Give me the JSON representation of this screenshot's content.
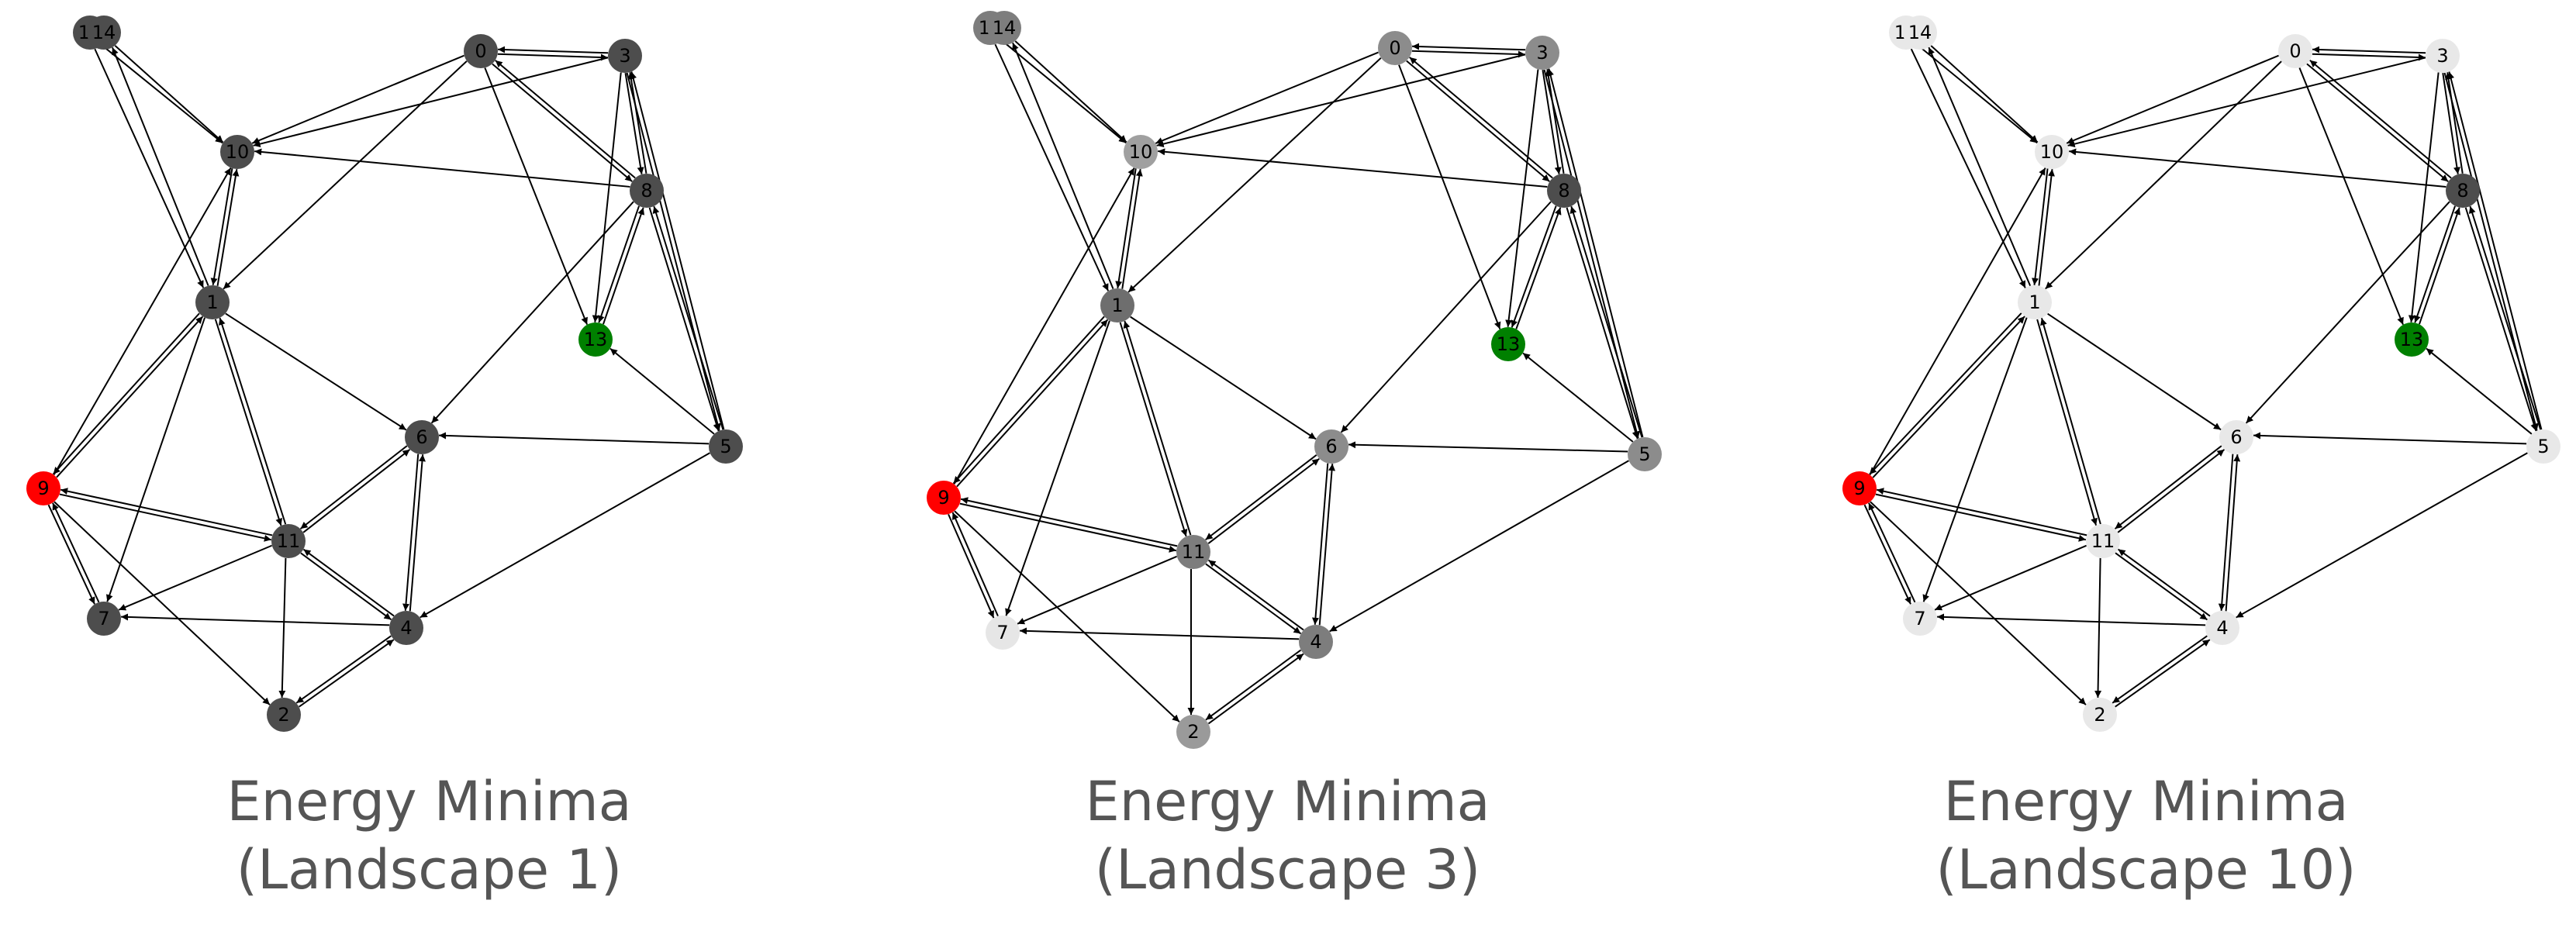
{
  "colors": {
    "start_node": "#ff0000",
    "goal_node": "#008000",
    "edge": "#000000",
    "caption": "#555555"
  },
  "node_ids": [
    "0",
    "1",
    "2",
    "3",
    "4",
    "5",
    "6",
    "7",
    "8",
    "9",
    "10",
    "11",
    "12",
    "13",
    "14"
  ],
  "edges": [
    [
      "0",
      "3"
    ],
    [
      "3",
      "0"
    ],
    [
      "0",
      "10"
    ],
    [
      "3",
      "10"
    ],
    [
      "0",
      "1"
    ],
    [
      "0",
      "8"
    ],
    [
      "8",
      "0"
    ],
    [
      "0",
      "13"
    ],
    [
      "3",
      "8"
    ],
    [
      "8",
      "3"
    ],
    [
      "3",
      "13"
    ],
    [
      "3",
      "5"
    ],
    [
      "5",
      "3"
    ],
    [
      "8",
      "5"
    ],
    [
      "5",
      "8"
    ],
    [
      "8",
      "10"
    ],
    [
      "8",
      "13"
    ],
    [
      "13",
      "8"
    ],
    [
      "8",
      "6"
    ],
    [
      "5",
      "13"
    ],
    [
      "5",
      "6"
    ],
    [
      "5",
      "4"
    ],
    [
      "12",
      "10"
    ],
    [
      "14",
      "10"
    ],
    [
      "12",
      "1"
    ],
    [
      "1",
      "14"
    ],
    [
      "10",
      "1"
    ],
    [
      "1",
      "10"
    ],
    [
      "9",
      "10"
    ],
    [
      "1",
      "9"
    ],
    [
      "9",
      "1"
    ],
    [
      "1",
      "6"
    ],
    [
      "1",
      "7"
    ],
    [
      "1",
      "11"
    ],
    [
      "11",
      "1"
    ],
    [
      "9",
      "11"
    ],
    [
      "11",
      "9"
    ],
    [
      "9",
      "7"
    ],
    [
      "7",
      "9"
    ],
    [
      "9",
      "2"
    ],
    [
      "11",
      "6"
    ],
    [
      "6",
      "11"
    ],
    [
      "11",
      "7"
    ],
    [
      "11",
      "2"
    ],
    [
      "11",
      "4"
    ],
    [
      "4",
      "11"
    ],
    [
      "4",
      "6"
    ],
    [
      "6",
      "4"
    ],
    [
      "4",
      "7"
    ],
    [
      "2",
      "4"
    ],
    [
      "4",
      "2"
    ]
  ],
  "panels": [
    {
      "id": "landscape-1",
      "caption_line1": "Energy Minima",
      "caption_line2": "(Landscape 1)",
      "node_colors": {
        "0": "#4d4d4d",
        "1": "#4d4d4d",
        "2": "#4d4d4d",
        "3": "#4d4d4d",
        "4": "#4d4d4d",
        "5": "#4d4d4d",
        "6": "#4d4d4d",
        "7": "#4d4d4d",
        "8": "#4d4d4d",
        "9": "#ff0000",
        "10": "#4d4d4d",
        "11": "#4d4d4d",
        "12": "#4d4d4d",
        "13": "#008000",
        "14": "#4d4d4d"
      }
    },
    {
      "id": "landscape-3",
      "caption_line1": "Energy Minima",
      "caption_line2": "(Landscape 3)",
      "node_colors": {
        "0": "#8c8c8c",
        "1": "#6e6e6e",
        "2": "#9a9a9a",
        "3": "#8c8c8c",
        "4": "#7d7d7d",
        "5": "#8c8c8c",
        "6": "#8c8c8c",
        "7": "#e6e6e6",
        "8": "#4d4d4d",
        "9": "#ff0000",
        "10": "#a0a0a0",
        "11": "#7d7d7d",
        "12": "#7d7d7d",
        "13": "#008000",
        "14": "#7d7d7d"
      }
    },
    {
      "id": "landscape-10",
      "caption_line1": "Energy Minima",
      "caption_line2": "(Landscape 10)",
      "node_colors": {
        "0": "#e8e8e8",
        "1": "#e8e8e8",
        "2": "#e8e8e8",
        "3": "#e8e8e8",
        "4": "#e8e8e8",
        "5": "#e8e8e8",
        "6": "#e8e8e8",
        "7": "#e8e8e8",
        "8": "#4d4d4d",
        "9": "#ff0000",
        "10": "#e8e8e8",
        "11": "#e8e8e8",
        "12": "#e8e8e8",
        "13": "#008000",
        "14": "#e8e8e8"
      }
    }
  ]
}
